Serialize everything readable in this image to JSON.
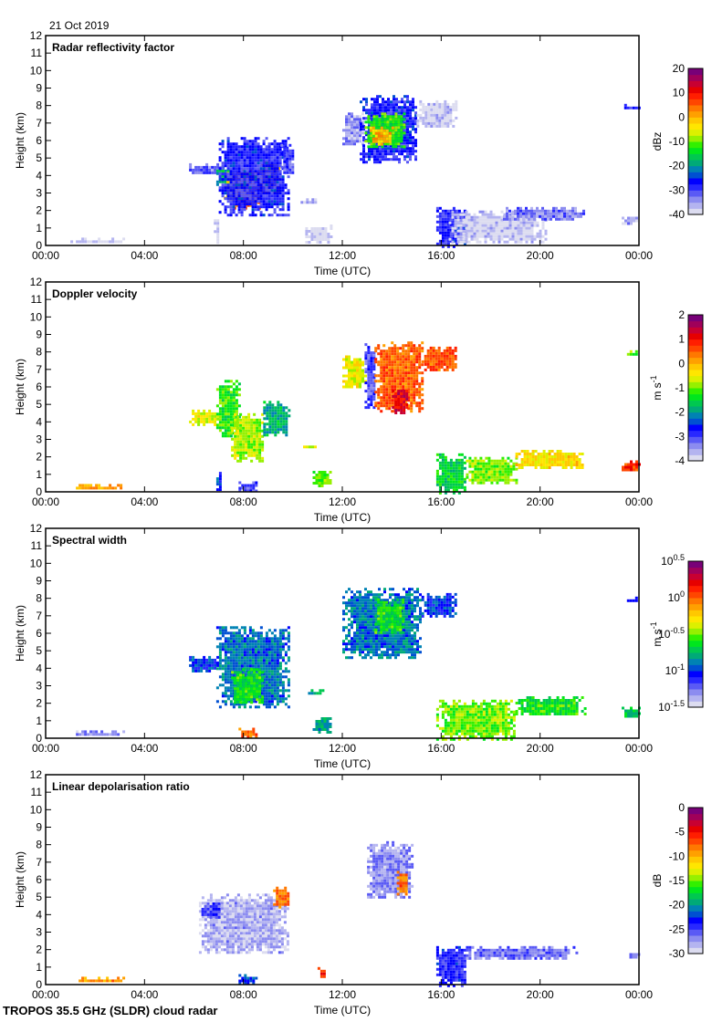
{
  "header": {
    "date": "21 Oct 2019"
  },
  "footer": {
    "instrument": "TROPOS 35.5 GHz (SLDR) cloud radar"
  },
  "colormap": [
    "#dcdcf0",
    "#b4b4f0",
    "#8c8cf0",
    "#5a5af5",
    "#2828ff",
    "#0000ff",
    "#0050d2",
    "#0082b4",
    "#00aa78",
    "#00c850",
    "#00e61e",
    "#32f000",
    "#96f000",
    "#dcf000",
    "#ffe600",
    "#ffc800",
    "#ffa000",
    "#ff7800",
    "#ff4600",
    "#ff1e00",
    "#e60000",
    "#c80032",
    "#a0005a",
    "#780078"
  ],
  "chart_data": [
    {
      "type": "heatmap",
      "title": "Radar reflectivity factor",
      "xlabel": "Time (UTC)",
      "ylabel": "Height (km)",
      "xlim": [
        0,
        24
      ],
      "ylim": [
        0,
        12
      ],
      "x_ticks": [
        "00:00",
        "04:00",
        "08:00",
        "12:00",
        "16:00",
        "20:00",
        "00:00"
      ],
      "y_ticks": [
        "0",
        "1",
        "2",
        "3",
        "4",
        "5",
        "6",
        "7",
        "8",
        "9",
        "10",
        "11",
        "12"
      ],
      "colorbar": {
        "label": "dBz",
        "range": [
          -40,
          20
        ],
        "ticks": [
          "20",
          "10",
          "0",
          "-10",
          "-20",
          "-30",
          "-40"
        ]
      },
      "features": [
        {
          "t0": 1.0,
          "t1": 3.2,
          "h0": 0.2,
          "h1": 0.45,
          "value": -38
        },
        {
          "t0": 5.8,
          "t1": 7.2,
          "h0": 4.1,
          "h1": 4.7,
          "value": -32
        },
        {
          "t0": 6.9,
          "t1": 7.5,
          "h0": 3.5,
          "h1": 4.5,
          "value": -18
        },
        {
          "t0": 7.2,
          "t1": 8.0,
          "h0": 2.5,
          "h1": 4.2,
          "value": -5
        },
        {
          "t0": 7.6,
          "t1": 8.6,
          "h0": 2.2,
          "h1": 4.4,
          "value": 4
        },
        {
          "t0": 8.6,
          "t1": 9.4,
          "h0": 3.0,
          "h1": 4.8,
          "value": 2
        },
        {
          "t0": 7.0,
          "t1": 9.8,
          "h0": 1.8,
          "h1": 6.2,
          "value": -28
        },
        {
          "t0": 9.5,
          "t1": 10.0,
          "h0": 4.0,
          "h1": 5.8,
          "value": -30
        },
        {
          "t0": 6.8,
          "t1": 7.0,
          "h0": 0.0,
          "h1": 1.5,
          "value": -39
        },
        {
          "t0": 10.2,
          "t1": 11.0,
          "h0": 2.4,
          "h1": 2.7,
          "value": -36
        },
        {
          "t0": 10.5,
          "t1": 11.5,
          "h0": 0.2,
          "h1": 1.2,
          "value": -39
        },
        {
          "t0": 12.0,
          "t1": 12.8,
          "h0": 5.8,
          "h1": 7.6,
          "value": -35
        },
        {
          "t0": 12.7,
          "t1": 15.0,
          "h0": 4.8,
          "h1": 8.6,
          "value": -28
        },
        {
          "t0": 12.9,
          "t1": 14.5,
          "h0": 5.6,
          "h1": 7.6,
          "value": -12
        },
        {
          "t0": 13.1,
          "t1": 14.0,
          "h0": 5.8,
          "h1": 6.8,
          "value": 0
        },
        {
          "t0": 15.0,
          "t1": 16.6,
          "h0": 6.8,
          "h1": 8.3,
          "value": -38
        },
        {
          "t0": 15.8,
          "t1": 17.0,
          "h0": 0.0,
          "h1": 2.2,
          "value": -28
        },
        {
          "t0": 16.3,
          "t1": 20.2,
          "h0": 0.2,
          "h1": 2.0,
          "value": -38
        },
        {
          "t0": 18.5,
          "t1": 21.8,
          "h0": 1.5,
          "h1": 2.2,
          "value": -33
        },
        {
          "t0": 23.3,
          "t1": 24.0,
          "h0": 1.3,
          "h1": 1.8,
          "value": -36
        },
        {
          "t0": 23.4,
          "t1": 24.0,
          "h0": 7.8,
          "h1": 8.1,
          "value": -28
        }
      ]
    },
    {
      "type": "heatmap",
      "title": "Doppler velocity",
      "xlabel": "Time (UTC)",
      "ylabel": "Height (km)",
      "xlim": [
        0,
        24
      ],
      "ylim": [
        0,
        12
      ],
      "x_ticks": [
        "00:00",
        "04:00",
        "08:00",
        "12:00",
        "16:00",
        "20:00",
        "00:00"
      ],
      "y_ticks": [
        "0",
        "1",
        "2",
        "3",
        "4",
        "5",
        "6",
        "7",
        "8",
        "9",
        "10",
        "11",
        "12"
      ],
      "colorbar": {
        "label": "m s-1",
        "range": [
          -4,
          2
        ],
        "ticks": [
          "2",
          "1",
          "0",
          "-1",
          "-2",
          "-3",
          "-4"
        ]
      },
      "features": [
        {
          "t0": 1.0,
          "t1": 3.2,
          "h0": 0.2,
          "h1": 0.45,
          "value": 0.1
        },
        {
          "t0": 5.8,
          "t1": 7.0,
          "h0": 3.9,
          "h1": 4.7,
          "value": -0.6
        },
        {
          "t0": 6.9,
          "t1": 7.8,
          "h0": 3.2,
          "h1": 6.4,
          "value": -1.2
        },
        {
          "t0": 7.5,
          "t1": 8.8,
          "h0": 1.8,
          "h1": 4.5,
          "value": -0.8
        },
        {
          "t0": 8.8,
          "t1": 9.8,
          "h0": 3.2,
          "h1": 5.2,
          "value": -1.8
        },
        {
          "t0": 6.9,
          "t1": 7.1,
          "h0": 0.2,
          "h1": 1.3,
          "value": -2.5
        },
        {
          "t0": 7.8,
          "t1": 8.5,
          "h0": 0.1,
          "h1": 0.6,
          "value": -3.0
        },
        {
          "t0": 10.3,
          "t1": 11.0,
          "h0": 2.5,
          "h1": 2.8,
          "value": -0.5
        },
        {
          "t0": 10.8,
          "t1": 11.5,
          "h0": 0.4,
          "h1": 1.2,
          "value": -1.0
        },
        {
          "t0": 12.0,
          "t1": 12.9,
          "h0": 6.0,
          "h1": 7.8,
          "value": -0.5
        },
        {
          "t0": 12.9,
          "t1": 13.3,
          "h0": 4.8,
          "h1": 8.5,
          "value": -3.0
        },
        {
          "t0": 13.3,
          "t1": 15.2,
          "h0": 4.6,
          "h1": 8.6,
          "value": 0.5
        },
        {
          "t0": 14.0,
          "t1": 14.6,
          "h0": 4.5,
          "h1": 6.0,
          "value": 1.2
        },
        {
          "t0": 15.2,
          "t1": 16.6,
          "h0": 7.0,
          "h1": 8.3,
          "value": 0.6
        },
        {
          "t0": 15.8,
          "t1": 17.0,
          "h0": 0.0,
          "h1": 2.2,
          "value": -1.5
        },
        {
          "t0": 17.0,
          "t1": 19.0,
          "h0": 0.5,
          "h1": 2.0,
          "value": -1.0
        },
        {
          "t0": 19.0,
          "t1": 21.8,
          "h0": 1.4,
          "h1": 2.4,
          "value": -0.3
        },
        {
          "t0": 23.3,
          "t1": 24.0,
          "h0": 1.2,
          "h1": 1.8,
          "value": 0.8
        },
        {
          "t0": 23.4,
          "t1": 24.0,
          "h0": 7.8,
          "h1": 8.1,
          "value": -1.0
        }
      ]
    },
    {
      "type": "heatmap",
      "title": "Spectral width",
      "xlabel": "Time (UTC)",
      "ylabel": "Height (km)",
      "xlim": [
        0,
        24
      ],
      "ylim": [
        0,
        12
      ],
      "x_ticks": [
        "00:00",
        "04:00",
        "08:00",
        "12:00",
        "16:00",
        "20:00",
        "00:00"
      ],
      "y_ticks": [
        "0",
        "1",
        "2",
        "3",
        "4",
        "5",
        "6",
        "7",
        "8",
        "9",
        "10",
        "11",
        "12"
      ],
      "colorbar": {
        "label": "m s-1",
        "scale": "log10",
        "range": [
          -1.5,
          0.5
        ],
        "ticks": [
          "10^0.5",
          "10^0",
          "10^-0.5",
          "10^-1",
          "10^-1.5"
        ]
      },
      "features": [
        {
          "t0": 1.0,
          "t1": 3.2,
          "h0": 0.2,
          "h1": 0.45,
          "value": -1.3
        },
        {
          "t0": 5.8,
          "t1": 7.0,
          "h0": 3.9,
          "h1": 4.7,
          "value": -1.0
        },
        {
          "t0": 6.9,
          "t1": 9.8,
          "h0": 1.8,
          "h1": 6.4,
          "value": -0.9
        },
        {
          "t0": 7.5,
          "t1": 8.8,
          "h0": 2.0,
          "h1": 4.0,
          "value": -0.6
        },
        {
          "t0": 7.8,
          "t1": 8.5,
          "h0": 0.1,
          "h1": 0.6,
          "value": 0.0
        },
        {
          "t0": 10.5,
          "t1": 11.2,
          "h0": 2.5,
          "h1": 2.8,
          "value": -0.8
        },
        {
          "t0": 10.8,
          "t1": 11.5,
          "h0": 0.4,
          "h1": 1.2,
          "value": -0.8
        },
        {
          "t0": 12.0,
          "t1": 15.2,
          "h0": 4.6,
          "h1": 8.6,
          "value": -0.9
        },
        {
          "t0": 13.3,
          "t1": 14.5,
          "h0": 6.0,
          "h1": 8.0,
          "value": -0.6
        },
        {
          "t0": 15.2,
          "t1": 16.6,
          "h0": 7.0,
          "h1": 8.3,
          "value": -1.0
        },
        {
          "t0": 15.8,
          "t1": 19.0,
          "h0": 0.0,
          "h1": 2.2,
          "value": -0.5
        },
        {
          "t0": 19.0,
          "t1": 21.8,
          "h0": 1.4,
          "h1": 2.4,
          "value": -0.6
        },
        {
          "t0": 23.3,
          "t1": 24.0,
          "h0": 1.2,
          "h1": 1.8,
          "value": -0.7
        },
        {
          "t0": 23.4,
          "t1": 24.0,
          "h0": 7.8,
          "h1": 8.1,
          "value": -1.0
        }
      ]
    },
    {
      "type": "heatmap",
      "title": "Linear depolarisation ratio",
      "xlabel": "Time (UTC)",
      "ylabel": "Height (km)",
      "xlim": [
        0,
        24
      ],
      "ylim": [
        0,
        12
      ],
      "x_ticks": [
        "00:00",
        "04:00",
        "08:00",
        "12:00",
        "16:00",
        "20:00",
        "00:00"
      ],
      "y_ticks": [
        "0",
        "1",
        "2",
        "3",
        "4",
        "5",
        "6",
        "7",
        "8",
        "9",
        "10",
        "11",
        "12"
      ],
      "colorbar": {
        "label": "dB",
        "range": [
          -30,
          0
        ],
        "ticks": [
          "0",
          "-5",
          "-10",
          "-15",
          "-20",
          "-25",
          "-30"
        ]
      },
      "features": [
        {
          "t0": 1.0,
          "t1": 3.2,
          "h0": 0.2,
          "h1": 0.45,
          "value": -9
        },
        {
          "t0": 6.2,
          "t1": 9.8,
          "h0": 1.8,
          "h1": 5.2,
          "value": -28
        },
        {
          "t0": 6.3,
          "t1": 7.0,
          "h0": 3.9,
          "h1": 4.7,
          "value": -25
        },
        {
          "t0": 9.2,
          "t1": 9.8,
          "h0": 4.5,
          "h1": 5.6,
          "value": -8
        },
        {
          "t0": 7.8,
          "t1": 8.5,
          "h0": 0.1,
          "h1": 0.6,
          "value": -22
        },
        {
          "t0": 11.0,
          "t1": 11.3,
          "h0": 0.5,
          "h1": 1.0,
          "value": -6
        },
        {
          "t0": 13.0,
          "t1": 14.8,
          "h0": 5.0,
          "h1": 8.2,
          "value": -27
        },
        {
          "t0": 14.2,
          "t1": 14.6,
          "h0": 5.2,
          "h1": 6.5,
          "value": -8
        },
        {
          "t0": 15.8,
          "t1": 17.0,
          "h0": 0.0,
          "h1": 2.2,
          "value": -24
        },
        {
          "t0": 17.0,
          "t1": 21.5,
          "h0": 1.5,
          "h1": 2.2,
          "value": -26
        },
        {
          "t0": 23.5,
          "t1": 24.0,
          "h0": 1.5,
          "h1": 1.8,
          "value": -27
        }
      ]
    }
  ]
}
